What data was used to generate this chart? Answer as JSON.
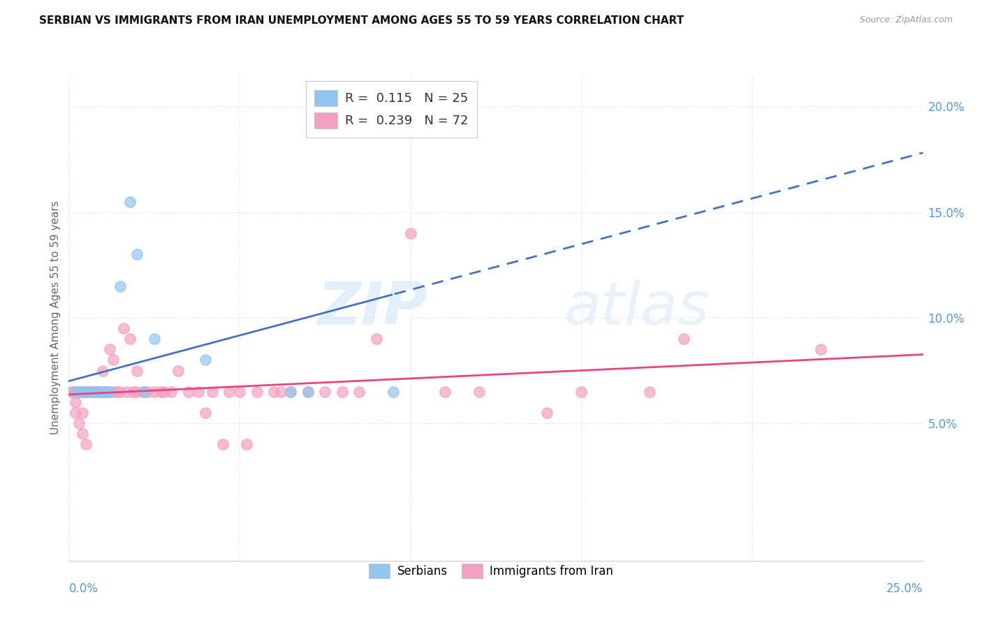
{
  "title": "SERBIAN VS IMMIGRANTS FROM IRAN UNEMPLOYMENT AMONG AGES 55 TO 59 YEARS CORRELATION CHART",
  "source": "Source: ZipAtlas.com",
  "ylabel": "Unemployment Among Ages 55 to 59 years",
  "xlim": [
    0.0,
    0.25
  ],
  "ylim": [
    -0.015,
    0.215
  ],
  "serbian_color": "#92C5F0",
  "iran_color": "#F4A0C0",
  "serbian_line_color": "#4472C4",
  "iran_line_color": "#E8457A",
  "legend_R_serbian": "0.115",
  "legend_N_serbian": "25",
  "legend_R_iran": "0.239",
  "legend_N_iran": "72",
  "watermark_zip": "ZIP",
  "watermark_atlas": "atlas",
  "serbian_x": [
    0.002,
    0.003,
    0.004,
    0.005,
    0.005,
    0.006,
    0.006,
    0.007,
    0.008,
    0.008,
    0.009,
    0.01,
    0.01,
    0.011,
    0.012,
    0.015,
    0.018,
    0.02,
    0.022,
    0.025,
    0.04,
    0.065,
    0.07,
    0.09,
    0.095
  ],
  "serbian_y": [
    0.065,
    0.065,
    0.065,
    0.065,
    0.065,
    0.065,
    0.065,
    0.065,
    0.065,
    0.065,
    0.065,
    0.065,
    0.065,
    0.065,
    0.065,
    0.115,
    0.155,
    0.13,
    0.065,
    0.09,
    0.08,
    0.065,
    0.065,
    0.19,
    0.065
  ],
  "iran_x": [
    0.001,
    0.001,
    0.002,
    0.002,
    0.002,
    0.003,
    0.003,
    0.003,
    0.004,
    0.004,
    0.004,
    0.005,
    0.005,
    0.005,
    0.005,
    0.005,
    0.006,
    0.006,
    0.007,
    0.007,
    0.008,
    0.008,
    0.009,
    0.009,
    0.01,
    0.01,
    0.011,
    0.011,
    0.012,
    0.012,
    0.013,
    0.013,
    0.014,
    0.015,
    0.016,
    0.017,
    0.018,
    0.019,
    0.02,
    0.02,
    0.022,
    0.023,
    0.025,
    0.027,
    0.028,
    0.03,
    0.032,
    0.035,
    0.038,
    0.04,
    0.042,
    0.045,
    0.047,
    0.05,
    0.052,
    0.055,
    0.06,
    0.062,
    0.065,
    0.07,
    0.075,
    0.08,
    0.085,
    0.09,
    0.1,
    0.11,
    0.12,
    0.14,
    0.15,
    0.17,
    0.18,
    0.22
  ],
  "iran_y": [
    0.065,
    0.065,
    0.065,
    0.06,
    0.055,
    0.065,
    0.065,
    0.05,
    0.065,
    0.055,
    0.045,
    0.065,
    0.065,
    0.065,
    0.065,
    0.04,
    0.065,
    0.065,
    0.065,
    0.065,
    0.065,
    0.065,
    0.065,
    0.065,
    0.065,
    0.075,
    0.065,
    0.065,
    0.065,
    0.085,
    0.065,
    0.08,
    0.065,
    0.065,
    0.095,
    0.065,
    0.09,
    0.065,
    0.075,
    0.065,
    0.065,
    0.065,
    0.065,
    0.065,
    0.065,
    0.065,
    0.075,
    0.065,
    0.065,
    0.055,
    0.065,
    0.04,
    0.065,
    0.065,
    0.04,
    0.065,
    0.065,
    0.065,
    0.065,
    0.065,
    0.065,
    0.065,
    0.065,
    0.09,
    0.14,
    0.065,
    0.065,
    0.055,
    0.065,
    0.065,
    0.09,
    0.085
  ]
}
